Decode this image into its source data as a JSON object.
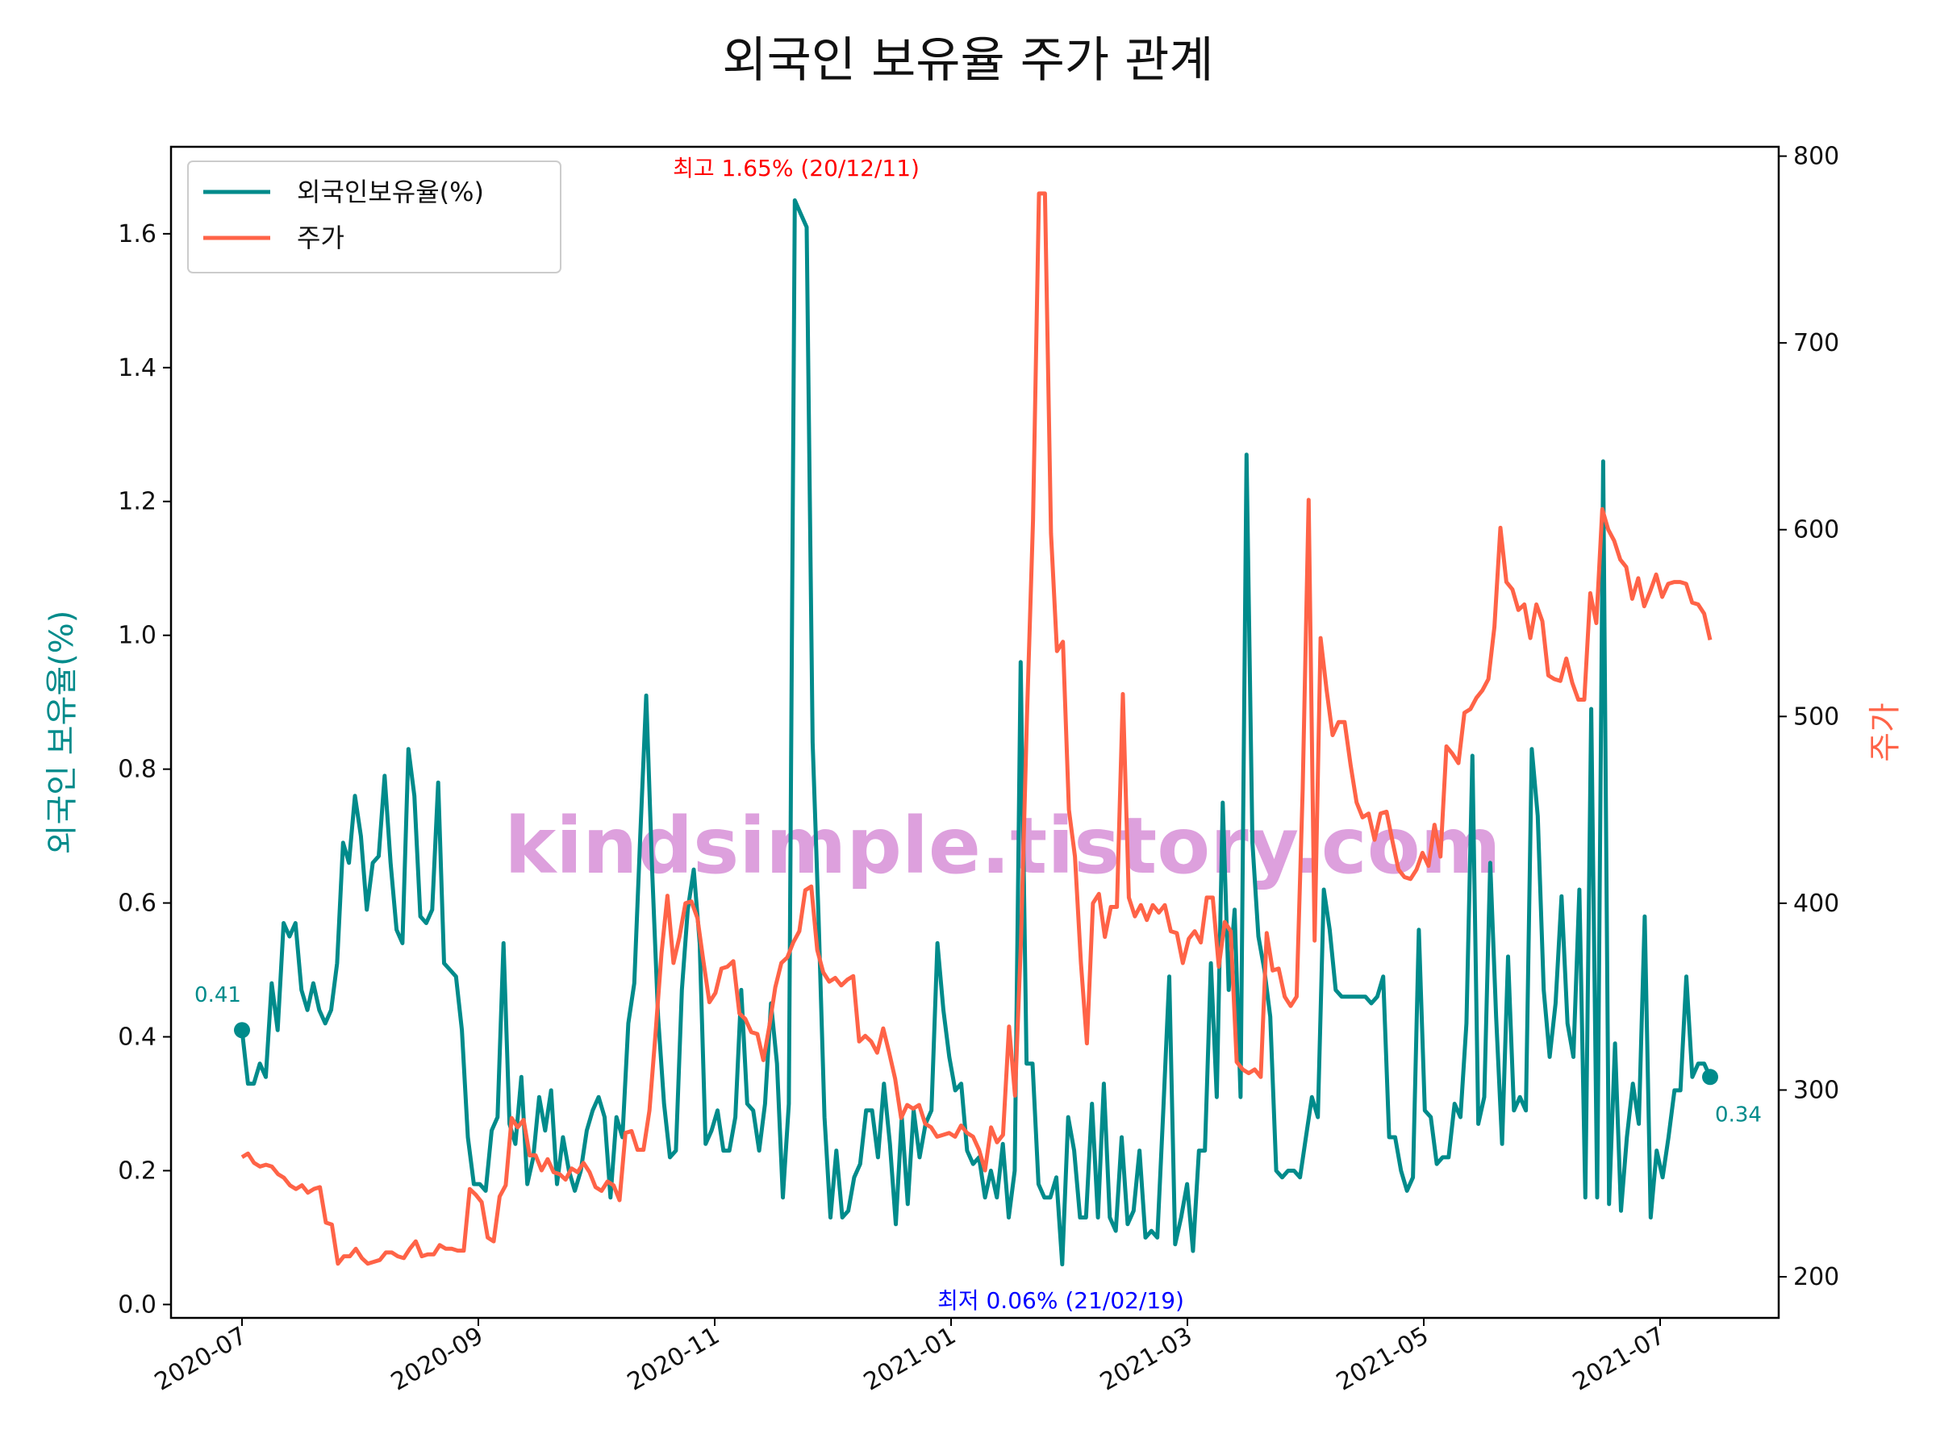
{
  "chart_data": {
    "type": "line",
    "title": "외국인 보유율 주가 관계",
    "xlabel": "",
    "ylabel_left": "외국인 보유율(%)",
    "ylabel_right": "주가",
    "ylim_left": [
      -0.02,
      1.73
    ],
    "ylim_right": [
      178,
      805
    ],
    "yticks_left": [
      "0.0",
      "0.2",
      "0.4",
      "0.6",
      "0.8",
      "1.0",
      "1.2",
      "1.4",
      "1.6"
    ],
    "yticks_right": [
      "200",
      "300",
      "400",
      "500",
      "600",
      "700",
      "800"
    ],
    "xticks": [
      "2020-07",
      "2020-09",
      "2020-11",
      "2021-01",
      "2021-03",
      "2021-05",
      "2021-07"
    ],
    "legend": {
      "position": "top-left",
      "entries": [
        "외국인보유율(%)",
        "주가"
      ]
    },
    "colors": {
      "holding": "#008b8b",
      "price": "#ff6347",
      "watermark": "#dda0dd",
      "max_note": "#ff0000",
      "min_note": "#0000ff"
    },
    "annotations": {
      "max_label": "최고 1.65% (20/12/11)",
      "min_label": "최저 0.06% (21/02/19)",
      "start_value": "0.41",
      "end_value": "0.34"
    },
    "watermark": "kindsimple.tistory.com",
    "series": [
      {
        "name": "외국인보유율(%)",
        "axis": "left",
        "values": [
          0.41,
          0.33,
          0.33,
          0.36,
          0.34,
          0.48,
          0.41,
          0.57,
          0.55,
          0.57,
          0.47,
          0.44,
          0.48,
          0.44,
          0.42,
          0.44,
          0.51,
          0.69,
          0.66,
          0.76,
          0.7,
          0.59,
          0.66,
          0.67,
          0.79,
          0.66,
          0.56,
          0.54,
          0.83,
          0.76,
          0.58,
          0.57,
          0.59,
          0.78,
          0.51,
          0.5,
          0.49,
          0.41,
          0.25,
          0.18,
          0.18,
          0.17,
          0.26,
          0.28,
          0.54,
          0.27,
          0.24,
          0.34,
          0.18,
          0.22,
          0.31,
          0.26,
          0.32,
          0.18,
          0.25,
          0.2,
          0.17,
          0.2,
          0.26,
          0.29,
          0.31,
          0.28,
          0.16,
          0.28,
          0.25,
          0.42,
          0.48,
          0.7,
          0.91,
          0.65,
          0.43,
          0.3,
          0.22,
          0.23,
          0.47,
          0.59,
          0.65,
          0.54,
          0.24,
          0.26,
          0.29,
          0.23,
          0.23,
          0.28,
          0.47,
          0.3,
          0.29,
          0.23,
          0.3,
          0.45,
          0.36,
          0.16,
          0.3,
          1.65,
          1.63,
          1.61,
          0.84,
          0.58,
          0.28,
          0.13,
          0.23,
          0.13,
          0.14,
          0.19,
          0.21,
          0.29,
          0.29,
          0.22,
          0.33,
          0.24,
          0.12,
          0.28,
          0.15,
          0.29,
          0.22,
          0.27,
          0.29,
          0.54,
          0.44,
          0.37,
          0.32,
          0.33,
          0.23,
          0.21,
          0.22,
          0.16,
          0.2,
          0.16,
          0.24,
          0.13,
          0.2,
          0.96,
          0.36,
          0.36,
          0.18,
          0.16,
          0.16,
          0.19,
          0.06,
          0.28,
          0.23,
          0.13,
          0.13,
          0.3,
          0.13,
          0.33,
          0.13,
          0.11,
          0.25,
          0.12,
          0.14,
          0.23,
          0.1,
          0.11,
          0.1,
          0.29,
          0.49,
          0.09,
          0.13,
          0.18,
          0.08,
          0.23,
          0.23,
          0.51,
          0.31,
          0.75,
          0.47,
          0.59,
          0.31,
          1.27,
          0.69,
          0.55,
          0.5,
          0.43,
          0.2,
          0.19,
          0.2,
          0.2,
          0.19,
          0.25,
          0.31,
          0.28,
          0.62,
          0.56,
          0.47,
          0.46,
          0.46,
          0.46,
          0.46,
          0.46,
          0.45,
          0.46,
          0.49,
          0.25,
          0.25,
          0.2,
          0.17,
          0.19,
          0.56,
          0.29,
          0.28,
          0.21,
          0.22,
          0.22,
          0.3,
          0.28,
          0.42,
          0.82,
          0.27,
          0.31,
          0.66,
          0.43,
          0.24,
          0.52,
          0.29,
          0.31,
          0.29,
          0.83,
          0.73,
          0.47,
          0.37,
          0.45,
          0.61,
          0.42,
          0.37,
          0.62,
          0.16,
          0.89,
          0.16,
          1.26,
          0.15,
          0.39,
          0.14,
          0.25,
          0.33,
          0.27,
          0.58,
          0.13,
          0.23,
          0.19,
          0.25,
          0.32,
          0.32,
          0.49,
          0.34,
          0.36,
          0.36,
          0.34
        ]
      },
      {
        "name": "주가",
        "axis": "right",
        "values": [
          264,
          266,
          261,
          259,
          260,
          259,
          255,
          253,
          249,
          247,
          249,
          245,
          247,
          248,
          229,
          228,
          207,
          211,
          211,
          215,
          210,
          207,
          208,
          209,
          213,
          213,
          211,
          210,
          215,
          219,
          211,
          212,
          212,
          217,
          215,
          215,
          214,
          214,
          247,
          244,
          240,
          221,
          219,
          243,
          249,
          285,
          280,
          284,
          265,
          265,
          257,
          263,
          256,
          255,
          252,
          258,
          256,
          261,
          256,
          248,
          246,
          251,
          249,
          241,
          277,
          278,
          268,
          268,
          289,
          330,
          373,
          404,
          368,
          382,
          400,
          401,
          392,
          369,
          347,
          352,
          365,
          366,
          369,
          341,
          338,
          331,
          330,
          316,
          334,
          355,
          368,
          371,
          379,
          385,
          407,
          409,
          375,
          363,
          358,
          360,
          356,
          359,
          361,
          326,
          329,
          326,
          320,
          333,
          320,
          306,
          285,
          292,
          290,
          292,
          282,
          280,
          275,
          276,
          277,
          275,
          281,
          277,
          275,
          268,
          257,
          280,
          272,
          276,
          334,
          297,
          380,
          500,
          605,
          780,
          780,
          598,
          535,
          540,
          450,
          425,
          368,
          325,
          400,
          405,
          382,
          398,
          398,
          512,
          403,
          393,
          399,
          391,
          399,
          395,
          399,
          385,
          384,
          368,
          381,
          385,
          379,
          403,
          403,
          366,
          390,
          385,
          315,
          311,
          309,
          311,
          307,
          384,
          364,
          365,
          350,
          345,
          350,
          461,
          616,
          380,
          542,
          514,
          490,
          497,
          497,
          474,
          454,
          446,
          448,
          434,
          448,
          449,
          433,
          418,
          414,
          413,
          418,
          427,
          420,
          442,
          425,
          484,
          480,
          475,
          502,
          504,
          510,
          514,
          520,
          548,
          601,
          572,
          568,
          557,
          560,
          542,
          560,
          551,
          522,
          520,
          519,
          531,
          518,
          509,
          509,
          566,
          550,
          611,
          600,
          594,
          584,
          580,
          563,
          574,
          559,
          567,
          576,
          564,
          571,
          572,
          572,
          571,
          561,
          560,
          555,
          541
        ]
      }
    ]
  }
}
